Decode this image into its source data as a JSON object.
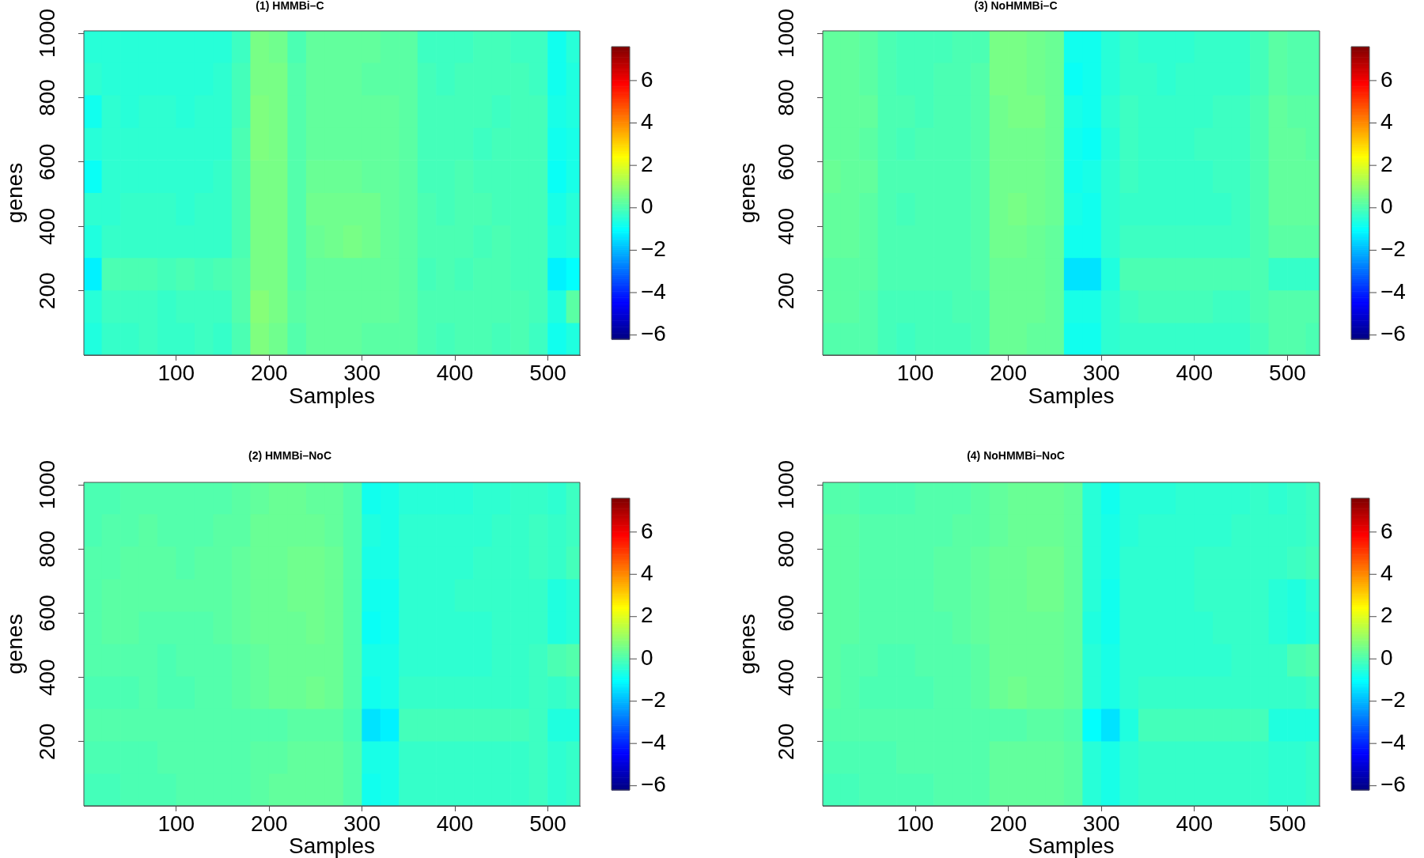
{
  "chart_data": [
    {
      "type": "heatmap",
      "title": "(1) HMMBi–C",
      "xlabel": "Samples",
      "ylabel": "genes",
      "x": [
        10,
        30,
        50,
        70,
        90,
        110,
        130,
        150,
        170,
        190,
        210,
        230,
        250,
        270,
        290,
        310,
        330,
        350,
        370,
        390,
        410,
        430,
        450,
        470,
        490,
        510,
        530
      ],
      "y": [
        959.5,
        858.5,
        757.5,
        656.5,
        555.5,
        454.5,
        353.5,
        252.5,
        151.5,
        50.5
      ],
      "xlim": [
        0.5,
        534.5
      ],
      "xticks": [
        100,
        200,
        300,
        400,
        500
      ],
      "ylim": [
        0.5,
        1007.5
      ],
      "yticks": [
        200,
        400,
        600,
        800,
        1000
      ],
      "clim": [
        -6.2,
        7.6
      ],
      "cticks": [
        {
          "value": -6,
          "label": "−6"
        },
        {
          "value": -4,
          "label": "−4"
        },
        {
          "value": -2,
          "label": "−2"
        },
        0,
        2,
        4,
        6
      ],
      "cells": [
        [
          -0.5,
          -0.5,
          -0.5,
          -0.5,
          -0.5,
          -0.5,
          -0.5,
          -0.5,
          -0.2,
          0.6,
          0.5,
          0,
          0.3,
          0.3,
          0.3,
          0.3,
          0.2,
          0.2,
          -0.2,
          -0.2,
          -0.2,
          -0.1,
          -0.1,
          -0.2,
          -0.2,
          -0.8,
          -0.5
        ],
        [
          -0.4,
          -0.5,
          -0.5,
          -0.5,
          -0.5,
          -0.5,
          -0.5,
          -0.4,
          -0.1,
          0.6,
          0.6,
          0.1,
          0.3,
          0.3,
          0.3,
          0.2,
          0.2,
          0.2,
          -0.1,
          -0.2,
          -0.1,
          -0.1,
          -0.1,
          -0.1,
          -0.2,
          -0.8,
          -0.6
        ],
        [
          -0.8,
          -0.4,
          -0.5,
          -0.4,
          -0.4,
          -0.5,
          -0.4,
          -0.4,
          -0.1,
          0.7,
          0.6,
          0.1,
          0.3,
          0.3,
          0.3,
          0.3,
          0.3,
          0.2,
          -0.1,
          -0.1,
          -0.1,
          -0.1,
          -0.2,
          -0.1,
          -0.1,
          -0.7,
          -0.6
        ],
        [
          -0.5,
          -0.4,
          -0.4,
          -0.4,
          -0.4,
          -0.4,
          -0.4,
          -0.4,
          0,
          0.7,
          0.6,
          0.1,
          0.3,
          0.3,
          0.3,
          0.3,
          0.3,
          0.2,
          -0.1,
          -0.1,
          -0.1,
          -0.2,
          -0.1,
          -0.1,
          -0.1,
          -0.8,
          -0.7
        ],
        [
          -0.9,
          -0.4,
          -0.4,
          -0.4,
          -0.4,
          -0.4,
          -0.4,
          -0.3,
          0,
          0.6,
          0.6,
          0.1,
          0.4,
          0.4,
          0.4,
          0.3,
          0.3,
          0.2,
          -0.1,
          -0.1,
          0,
          -0.1,
          -0.1,
          -0.1,
          -0.1,
          -0.9,
          -0.7
        ],
        [
          -0.4,
          -0.4,
          -0.3,
          -0.3,
          -0.3,
          -0.4,
          -0.3,
          -0.3,
          0,
          0.6,
          0.6,
          0.1,
          0.5,
          0.5,
          0.5,
          0.5,
          0.3,
          0.2,
          0,
          -0.1,
          0,
          0,
          -0.1,
          -0.1,
          -0.1,
          -0.7,
          -0.5
        ],
        [
          -0.6,
          -0.3,
          -0.3,
          -0.3,
          -0.3,
          -0.3,
          -0.3,
          -0.3,
          0,
          0.6,
          0.6,
          0.1,
          0.4,
          0.5,
          0.6,
          0.5,
          0.3,
          0.2,
          0,
          0,
          0,
          -0.1,
          0,
          -0.1,
          -0.1,
          -0.6,
          -0.5
        ],
        [
          -1.2,
          0,
          0,
          0,
          -0.1,
          0,
          -0.1,
          0,
          0.1,
          0.6,
          0.6,
          0.1,
          0.3,
          0.3,
          0.3,
          0.3,
          0.3,
          0.2,
          -0.1,
          0,
          -0.1,
          0,
          0,
          -0.1,
          -0.1,
          -1.2,
          -1.0
        ],
        [
          -0.5,
          -0.2,
          -0.2,
          -0.2,
          -0.3,
          -0.2,
          -0.2,
          -0.2,
          0.1,
          0.8,
          0.6,
          0.2,
          0.3,
          0.3,
          0.3,
          0.3,
          0.3,
          0.2,
          0,
          0,
          0,
          0,
          0,
          0,
          -0.1,
          -0.6,
          0.2
        ],
        [
          -0.6,
          -0.3,
          -0.3,
          -0.2,
          -0.3,
          -0.3,
          -0.2,
          -0.3,
          0,
          0.7,
          0.5,
          0.1,
          0.3,
          0.3,
          0.3,
          0.2,
          0.2,
          0.2,
          0,
          -0.1,
          0,
          0,
          -0.1,
          0,
          -0.2,
          -0.8,
          -0.6
        ]
      ]
    },
    {
      "type": "heatmap",
      "title": "(3) NoHMMBi–C",
      "xlabel": "Samples",
      "ylabel": "genes",
      "x": [
        10,
        30,
        50,
        70,
        90,
        110,
        130,
        150,
        170,
        190,
        210,
        230,
        250,
        270,
        290,
        310,
        330,
        350,
        370,
        390,
        410,
        430,
        450,
        470,
        490,
        510,
        530
      ],
      "y": [
        959.5,
        858.5,
        757.5,
        656.5,
        555.5,
        454.5,
        353.5,
        252.5,
        151.5,
        50.5
      ],
      "xlim": [
        0.5,
        534.5
      ],
      "xticks": [
        100,
        200,
        300,
        400,
        500
      ],
      "ylim": [
        0.5,
        1007.5
      ],
      "yticks": [
        200,
        400,
        600,
        800,
        1000
      ],
      "clim": [
        -6.2,
        7.6
      ],
      "cticks": [
        {
          "value": -6,
          "label": "−6"
        },
        {
          "value": -4,
          "label": "−4"
        },
        {
          "value": -2,
          "label": "−2"
        },
        0,
        2,
        4,
        6
      ],
      "cells": [
        [
          0.3,
          0.3,
          0.2,
          0,
          -0.1,
          -0.1,
          -0.1,
          0,
          0,
          0.6,
          0.6,
          0.5,
          0.4,
          -0.8,
          -0.8,
          -0.5,
          -0.3,
          -0.4,
          -0.4,
          -0.4,
          -0.3,
          -0.3,
          -0.3,
          -0.1,
          0.2,
          0.1,
          0.1
        ],
        [
          0.3,
          0.3,
          0.2,
          0,
          -0.1,
          -0.1,
          0,
          0,
          0.1,
          0.6,
          0.6,
          0.5,
          0.4,
          -0.9,
          -0.8,
          -0.5,
          -0.3,
          -0.3,
          -0.4,
          -0.3,
          -0.3,
          -0.3,
          -0.3,
          -0.1,
          0.2,
          0.1,
          0.1
        ],
        [
          0.3,
          0.3,
          0.3,
          0,
          0,
          -0.1,
          0,
          0,
          0.1,
          0.5,
          0.6,
          0.6,
          0.4,
          -0.7,
          -0.8,
          -0.4,
          -0.2,
          -0.3,
          -0.3,
          -0.3,
          -0.3,
          -0.2,
          -0.2,
          0,
          0.3,
          0.2,
          0.2
        ],
        [
          0.3,
          0.3,
          0.2,
          0,
          -0.1,
          0,
          0,
          0,
          0.1,
          0.5,
          0.5,
          0.5,
          0.4,
          -0.8,
          -0.9,
          -0.5,
          -0.2,
          -0.3,
          -0.3,
          -0.3,
          -0.2,
          -0.2,
          -0.2,
          0,
          0.3,
          0.3,
          0.2
        ],
        [
          0.4,
          0.3,
          0.3,
          0,
          0,
          0,
          0,
          0,
          0.1,
          0.5,
          0.5,
          0.5,
          0.4,
          -0.8,
          -0.7,
          -0.4,
          -0.2,
          -0.3,
          -0.3,
          -0.3,
          -0.3,
          -0.2,
          -0.2,
          0,
          0.3,
          0.3,
          0.3
        ],
        [
          0.3,
          0.3,
          0.2,
          0,
          -0.1,
          0,
          0,
          0,
          0.1,
          0.5,
          0.6,
          0.5,
          0.4,
          -0.7,
          -0.8,
          -0.4,
          -0.3,
          -0.3,
          -0.3,
          -0.3,
          -0.3,
          -0.3,
          -0.2,
          0,
          0.3,
          0.3,
          0.3
        ],
        [
          0.3,
          0.3,
          0.2,
          0,
          0,
          0,
          0,
          0,
          0.1,
          0.5,
          0.5,
          0.4,
          0.3,
          -0.8,
          -0.8,
          -0.4,
          -0.2,
          -0.2,
          -0.2,
          -0.2,
          -0.2,
          -0.2,
          -0.2,
          0,
          0.2,
          0.2,
          0.2
        ],
        [
          0.2,
          0.2,
          0.2,
          0,
          0,
          0,
          0,
          0,
          0.1,
          0.4,
          0.4,
          0.4,
          0.3,
          -1.4,
          -1.4,
          -0.6,
          0,
          0,
          0,
          0,
          0,
          0,
          0,
          0,
          -0.3,
          -0.3,
          -0.3
        ],
        [
          0.2,
          0.2,
          0.1,
          -0.1,
          -0.1,
          -0.1,
          -0.1,
          0,
          0,
          0.4,
          0.4,
          0.4,
          0.3,
          -0.7,
          -0.7,
          -0.4,
          -0.2,
          -0.1,
          -0.1,
          -0.1,
          -0.1,
          -0.2,
          -0.2,
          0,
          0.1,
          0.1,
          0.1
        ],
        [
          0.1,
          0.1,
          0.1,
          -0.1,
          -0.2,
          -0.1,
          -0.1,
          -0.1,
          0,
          0.4,
          0.4,
          0.3,
          0.3,
          -0.8,
          -0.8,
          -0.4,
          -0.3,
          -0.3,
          -0.3,
          -0.3,
          -0.3,
          -0.3,
          -0.3,
          -0.1,
          0.1,
          0.1,
          0
        ]
      ]
    },
    {
      "type": "heatmap",
      "title": "(2) HMMBi–NoC",
      "xlabel": "Samples",
      "ylabel": "genes",
      "x": [
        10,
        30,
        50,
        70,
        90,
        110,
        130,
        150,
        170,
        190,
        210,
        230,
        250,
        270,
        290,
        310,
        330,
        350,
        370,
        390,
        410,
        430,
        450,
        470,
        490,
        510,
        530
      ],
      "y": [
        959.5,
        858.5,
        757.5,
        656.5,
        555.5,
        454.5,
        353.5,
        252.5,
        151.5,
        50.5
      ],
      "xlim": [
        0.5,
        534.5
      ],
      "xticks": [
        100,
        200,
        300,
        400,
        500
      ],
      "ylim": [
        0.5,
        1007.5
      ],
      "yticks": [
        200,
        400,
        600,
        800,
        1000
      ],
      "clim": [
        -6.2,
        7.6
      ],
      "cticks": [
        {
          "value": -6,
          "label": "−6"
        },
        {
          "value": -4,
          "label": "−4"
        },
        {
          "value": -2,
          "label": "−2"
        },
        0,
        2,
        4,
        6
      ],
      "cells": [
        [
          0,
          0,
          0.1,
          0.1,
          0.1,
          0.1,
          0.1,
          0.1,
          0.2,
          0.3,
          0.4,
          0.4,
          0.3,
          0.3,
          0.1,
          -0.8,
          -0.7,
          -0.5,
          -0.5,
          -0.5,
          -0.5,
          -0.4,
          -0.4,
          -0.3,
          -0.3,
          -0.4,
          -0.2
        ],
        [
          0,
          0.1,
          0.1,
          0.2,
          0.1,
          0.1,
          0.1,
          0.2,
          0.2,
          0.4,
          0.4,
          0.4,
          0.4,
          0.3,
          0.1,
          -0.6,
          -0.7,
          -0.4,
          -0.4,
          -0.4,
          -0.4,
          -0.4,
          -0.3,
          -0.3,
          -0.2,
          -0.3,
          -0.2
        ],
        [
          0.1,
          0.1,
          0.2,
          0.2,
          0.2,
          0.1,
          0.2,
          0.2,
          0.3,
          0.4,
          0.4,
          0.5,
          0.5,
          0.4,
          0.1,
          -0.7,
          -0.7,
          -0.4,
          -0.4,
          -0.4,
          -0.4,
          -0.3,
          -0.3,
          -0.3,
          -0.2,
          -0.3,
          -0.1
        ],
        [
          0.1,
          0.2,
          0.2,
          0.2,
          0.2,
          0.2,
          0.2,
          0.2,
          0.3,
          0.4,
          0.4,
          0.5,
          0.5,
          0.4,
          0.1,
          -0.8,
          -0.8,
          -0.4,
          -0.4,
          -0.4,
          -0.3,
          -0.3,
          -0.3,
          -0.3,
          -0.3,
          -0.6,
          -0.5
        ],
        [
          0.1,
          0.2,
          0.2,
          0.1,
          0.1,
          0.1,
          0.1,
          0.2,
          0.3,
          0.4,
          0.4,
          0.4,
          0.5,
          0.4,
          0.1,
          -0.9,
          -0.8,
          -0.4,
          -0.4,
          -0.4,
          -0.4,
          -0.4,
          -0.3,
          -0.3,
          -0.3,
          -0.6,
          -0.5
        ],
        [
          0.1,
          0.1,
          0.1,
          0.1,
          0,
          0.1,
          0.1,
          0.1,
          0.2,
          0.3,
          0.4,
          0.4,
          0.4,
          0.4,
          0.1,
          -0.7,
          -0.7,
          -0.4,
          -0.4,
          -0.4,
          -0.4,
          -0.4,
          -0.3,
          -0.3,
          -0.2,
          0,
          0.1
        ],
        [
          0,
          0,
          0,
          0.1,
          0,
          0,
          0.1,
          0.1,
          0.2,
          0.3,
          0.4,
          0.4,
          0.5,
          0.4,
          0.1,
          -0.8,
          -0.7,
          -0.3,
          -0.3,
          -0.3,
          -0.3,
          -0.3,
          -0.3,
          -0.3,
          -0.2,
          -0.3,
          -0.2
        ],
        [
          0.1,
          0.1,
          0.1,
          0.1,
          0.1,
          0.1,
          0.1,
          0.1,
          0.1,
          0.1,
          0.1,
          0.2,
          0.2,
          0.2,
          0,
          -1.4,
          -1.2,
          -0.1,
          -0.1,
          -0.1,
          -0.1,
          -0.1,
          -0.1,
          -0.1,
          -0.2,
          -0.6,
          -0.6
        ],
        [
          0,
          0,
          0,
          0,
          0.1,
          0.1,
          0.1,
          0.1,
          0.1,
          0.2,
          0.2,
          0.3,
          0.3,
          0.3,
          0.1,
          -0.7,
          -0.7,
          -0.3,
          -0.3,
          -0.3,
          -0.3,
          -0.3,
          -0.3,
          -0.3,
          -0.2,
          -0.4,
          -0.3
        ],
        [
          -0.1,
          -0.1,
          0,
          0,
          0,
          0.1,
          0.1,
          0.1,
          0.1,
          0.2,
          0.3,
          0.3,
          0.3,
          0.3,
          0.1,
          -0.8,
          -0.7,
          -0.3,
          -0.3,
          -0.3,
          -0.3,
          -0.3,
          -0.3,
          -0.3,
          -0.2,
          -0.4,
          -0.3
        ]
      ]
    },
    {
      "type": "heatmap",
      "title": "(4) NoHMMBi–NoC",
      "xlabel": "Samples",
      "ylabel": "genes",
      "x": [
        10,
        30,
        50,
        70,
        90,
        110,
        130,
        150,
        170,
        190,
        210,
        230,
        250,
        270,
        290,
        310,
        330,
        350,
        370,
        390,
        410,
        430,
        450,
        470,
        490,
        510,
        530
      ],
      "y": [
        959.5,
        858.5,
        757.5,
        656.5,
        555.5,
        454.5,
        353.5,
        252.5,
        151.5,
        50.5
      ],
      "xlim": [
        0.5,
        534.5
      ],
      "xticks": [
        100,
        200,
        300,
        400,
        500
      ],
      "ylim": [
        0.5,
        1007.5
      ],
      "yticks": [
        200,
        400,
        600,
        800,
        1000
      ],
      "clim": [
        -6.2,
        7.6
      ],
      "cticks": [
        {
          "value": -6,
          "label": "−6"
        },
        {
          "value": -4,
          "label": "−4"
        },
        {
          "value": -2,
          "label": "−2"
        },
        0,
        2,
        4,
        6
      ],
      "cells": [
        [
          0.1,
          0.1,
          0,
          0,
          0,
          0.1,
          0.1,
          0.1,
          0.2,
          0.3,
          0.4,
          0.4,
          0.4,
          0.3,
          -0.5,
          -0.8,
          -0.5,
          -0.5,
          -0.5,
          -0.4,
          -0.4,
          -0.4,
          -0.4,
          -0.3,
          -0.4,
          -0.3,
          -0.2
        ],
        [
          0.2,
          0.2,
          0.1,
          0.1,
          0.1,
          0.1,
          0.1,
          0.2,
          0.2,
          0.3,
          0.4,
          0.4,
          0.4,
          0.3,
          -0.5,
          -0.7,
          -0.5,
          -0.4,
          -0.4,
          -0.4,
          -0.4,
          -0.4,
          -0.3,
          -0.3,
          -0.3,
          -0.3,
          -0.2
        ],
        [
          0.2,
          0.2,
          0.1,
          0.1,
          0.1,
          0.1,
          0.2,
          0.2,
          0.3,
          0.4,
          0.4,
          0.5,
          0.5,
          0.3,
          -0.5,
          -0.7,
          -0.4,
          -0.4,
          -0.4,
          -0.4,
          -0.3,
          -0.3,
          -0.3,
          -0.3,
          -0.3,
          -0.2,
          -0.1
        ],
        [
          0.2,
          0.2,
          0.1,
          0.1,
          0.1,
          0.1,
          0.2,
          0.2,
          0.3,
          0.4,
          0.4,
          0.5,
          0.5,
          0.3,
          -0.5,
          -0.8,
          -0.4,
          -0.4,
          -0.4,
          -0.4,
          -0.3,
          -0.3,
          -0.3,
          -0.3,
          -0.5,
          -0.6,
          -0.4
        ],
        [
          0.2,
          0.2,
          0.1,
          0.1,
          0.1,
          0.1,
          0.1,
          0.2,
          0.3,
          0.4,
          0.4,
          0.4,
          0.4,
          0.3,
          -0.6,
          -0.8,
          -0.4,
          -0.4,
          -0.4,
          -0.4,
          -0.4,
          -0.3,
          -0.3,
          -0.3,
          -0.5,
          -0.6,
          -0.5
        ],
        [
          0.2,
          0.1,
          0.1,
          0,
          0,
          0.1,
          0.1,
          0.1,
          0.2,
          0.4,
          0.4,
          0.4,
          0.4,
          0.3,
          -0.5,
          -0.7,
          -0.4,
          -0.4,
          -0.4,
          -0.4,
          -0.4,
          -0.4,
          -0.3,
          -0.3,
          -0.3,
          0,
          0.1
        ],
        [
          0.2,
          0.1,
          0,
          0,
          0,
          0,
          0.1,
          0.1,
          0.2,
          0.4,
          0.5,
          0.4,
          0.4,
          0.3,
          -0.5,
          -0.7,
          -0.4,
          -0.3,
          -0.3,
          -0.3,
          -0.3,
          -0.3,
          -0.3,
          -0.3,
          -0.3,
          -0.3,
          -0.2
        ],
        [
          0.1,
          0.1,
          0.1,
          0.1,
          0.1,
          0.1,
          0.1,
          0.1,
          0.1,
          0.1,
          0.1,
          0.2,
          0.2,
          0.1,
          -1.0,
          -1.4,
          -0.6,
          -0.1,
          -0.1,
          -0.1,
          -0.1,
          -0.1,
          -0.1,
          -0.1,
          -0.6,
          -0.6,
          -0.6
        ],
        [
          0,
          0,
          0,
          0,
          0.1,
          0.1,
          0.1,
          0.1,
          0.1,
          0.3,
          0.3,
          0.3,
          0.3,
          0.2,
          -0.5,
          -0.7,
          -0.4,
          -0.3,
          -0.3,
          -0.3,
          -0.3,
          -0.3,
          -0.3,
          -0.3,
          -0.4,
          -0.4,
          -0.3
        ],
        [
          -0.1,
          -0.1,
          0,
          0,
          0,
          0,
          0.1,
          0.1,
          0.1,
          0.3,
          0.3,
          0.3,
          0.3,
          0.2,
          -0.5,
          -0.7,
          -0.4,
          -0.3,
          -0.3,
          -0.3,
          -0.3,
          -0.3,
          -0.3,
          -0.3,
          -0.4,
          -0.4,
          -0.3
        ]
      ]
    }
  ]
}
